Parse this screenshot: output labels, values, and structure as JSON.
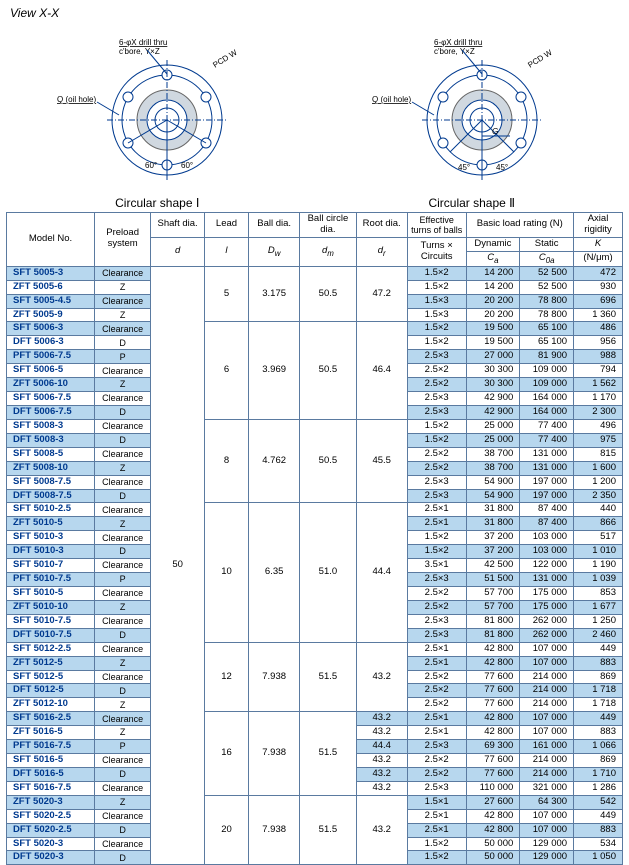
{
  "view_label": "View X-X",
  "diagram_labels": {
    "drill": "6-φX drill thru",
    "cbore": "c'bore, Y×Z",
    "pcd": "PCD W",
    "oil": "Q (oil hole)",
    "g": "G",
    "ang60": "60°",
    "ang45": "45°"
  },
  "shape1": "Circular shape Ⅰ",
  "shape2": "Circular shape Ⅱ",
  "headers": {
    "model": "Model No.",
    "preload": "Preload system",
    "shaft": "Shaft dia.",
    "shaft_sym": "d",
    "lead": "Lead",
    "lead_sym": "l",
    "ball": "Ball dia.",
    "ball_sym": "D",
    "ball_sub": "w",
    "bc": "Ball circle dia.",
    "bc_sym": "d",
    "bc_sub": "m",
    "rd": "Root dia.",
    "rd_sym": "d",
    "rd_sub": "r",
    "eff": "Effective turns of balls",
    "turns": "Turns × Circuits",
    "blr": "Basic load rating (N)",
    "dyn": "Dynamic",
    "ca": "C",
    "ca_sub": "a",
    "stat": "Static",
    "coa": "C",
    "coa_sub": "0a",
    "ar": "Axial rigidity",
    "k": "K",
    "kunit": "(N/μm)"
  },
  "groups": [
    {
      "shaft": "50",
      "lead": "5",
      "ball": "3.175",
      "bc": "50.5",
      "rd": "47.2",
      "rows": [
        {
          "m": "SFT 5005-3",
          "p": "Clearance",
          "t": "1.5×2",
          "ca": "14 200",
          "coa": "52 500",
          "k": "472"
        },
        {
          "m": "ZFT 5005-6",
          "p": "Z",
          "t": "1.5×2",
          "ca": "14 200",
          "coa": "52 500",
          "k": "930"
        },
        {
          "m": "SFT 5005-4.5",
          "p": "Clearance",
          "t": "1.5×3",
          "ca": "20 200",
          "coa": "78 800",
          "k": "696"
        },
        {
          "m": "ZFT 5005-9",
          "p": "Z",
          "t": "1.5×3",
          "ca": "20 200",
          "coa": "78 800",
          "k": "1 360"
        }
      ]
    },
    {
      "lead": "6",
      "ball": "3.969",
      "bc": "50.5",
      "rd": "46.4",
      "rows": [
        {
          "m": "SFT 5006-3",
          "p": "Clearance",
          "t": "1.5×2",
          "ca": "19 500",
          "coa": "65 100",
          "k": "486"
        },
        {
          "m": "DFT 5006-3",
          "p": "D",
          "t": "1.5×2",
          "ca": "19 500",
          "coa": "65 100",
          "k": "956"
        },
        {
          "m": "PFT 5006-7.5",
          "p": "P",
          "t": "2.5×3",
          "ca": "27 000",
          "coa": "81 900",
          "k": "988"
        },
        {
          "m": "SFT 5006-5",
          "p": "Clearance",
          "t": "2.5×2",
          "ca": "30 300",
          "coa": "109 000",
          "k": "794"
        },
        {
          "m": "ZFT 5006-10",
          "p": "Z",
          "t": "2.5×2",
          "ca": "30 300",
          "coa": "109 000",
          "k": "1 562"
        },
        {
          "m": "SFT 5006-7.5",
          "p": "Clearance",
          "t": "2.5×3",
          "ca": "42 900",
          "coa": "164 000",
          "k": "1 170"
        },
        {
          "m": "DFT 5006-7.5",
          "p": "D",
          "t": "2.5×3",
          "ca": "42 900",
          "coa": "164 000",
          "k": "2 300"
        }
      ]
    },
    {
      "lead": "8",
      "ball": "4.762",
      "bc": "50.5",
      "rd": "45.5",
      "rows": [
        {
          "m": "SFT 5008-3",
          "p": "Clearance",
          "t": "1.5×2",
          "ca": "25 000",
          "coa": "77 400",
          "k": "496"
        },
        {
          "m": "DFT 5008-3",
          "p": "D",
          "t": "1.5×2",
          "ca": "25 000",
          "coa": "77 400",
          "k": "975"
        },
        {
          "m": "SFT 5008-5",
          "p": "Clearance",
          "t": "2.5×2",
          "ca": "38 700",
          "coa": "131 000",
          "k": "815"
        },
        {
          "m": "ZFT 5008-10",
          "p": "Z",
          "t": "2.5×2",
          "ca": "38 700",
          "coa": "131 000",
          "k": "1 600"
        },
        {
          "m": "SFT 5008-7.5",
          "p": "Clearance",
          "t": "2.5×3",
          "ca": "54 900",
          "coa": "197 000",
          "k": "1 200"
        },
        {
          "m": "DFT 5008-7.5",
          "p": "D",
          "t": "2.5×3",
          "ca": "54 900",
          "coa": "197 000",
          "k": "2 350"
        }
      ]
    },
    {
      "lead": "10",
      "ball": "6.35",
      "bc": "51.0",
      "rd": "44.4",
      "rows": [
        {
          "m": "SFT 5010-2.5",
          "p": "Clearance",
          "t": "2.5×1",
          "ca": "31 800",
          "coa": "87 400",
          "k": "440"
        },
        {
          "m": "ZFT 5010-5",
          "p": "Z",
          "t": "2.5×1",
          "ca": "31 800",
          "coa": "87 400",
          "k": "866"
        },
        {
          "m": "SFT 5010-3",
          "p": "Clearance",
          "t": "1.5×2",
          "ca": "37 200",
          "coa": "103 000",
          "k": "517"
        },
        {
          "m": "DFT 5010-3",
          "p": "D",
          "t": "1.5×2",
          "ca": "37 200",
          "coa": "103 000",
          "k": "1 010"
        },
        {
          "m": "SFT 5010-7",
          "p": "Clearance",
          "t": "3.5×1",
          "ca": "42 500",
          "coa": "122 000",
          "k": "1 190"
        },
        {
          "m": "PFT 5010-7.5",
          "p": "P",
          "t": "2.5×3",
          "ca": "51 500",
          "coa": "131 000",
          "k": "1 039"
        },
        {
          "m": "SFT 5010-5",
          "p": "Clearance",
          "t": "2.5×2",
          "ca": "57 700",
          "coa": "175 000",
          "k": "853"
        },
        {
          "m": "ZFT 5010-10",
          "p": "Z",
          "t": "2.5×2",
          "ca": "57 700",
          "coa": "175 000",
          "k": "1 677",
          "star": true
        },
        {
          "m": "SFT 5010-7.5",
          "p": "Clearance",
          "t": "2.5×3",
          "ca": "81 800",
          "coa": "262 000",
          "k": "1 250"
        },
        {
          "m": "DFT 5010-7.5",
          "p": "D",
          "t": "2.5×3",
          "ca": "81 800",
          "coa": "262 000",
          "k": "2 460"
        }
      ]
    },
    {
      "lead": "12",
      "ball": "7.938",
      "bc": "51.5",
      "rd": "43.2",
      "rows": [
        {
          "m": "SFT 5012-2.5",
          "p": "Clearance",
          "t": "2.5×1",
          "ca": "42 800",
          "coa": "107 000",
          "k": "449"
        },
        {
          "m": "ZFT 5012-5",
          "p": "Z",
          "t": "2.5×1",
          "ca": "42 800",
          "coa": "107 000",
          "k": "883"
        },
        {
          "m": "SFT 5012-5",
          "p": "Clearance",
          "t": "2.5×2",
          "ca": "77 600",
          "coa": "214 000",
          "k": "869"
        },
        {
          "m": "DFT 5012-5",
          "p": "D",
          "t": "2.5×2",
          "ca": "77 600",
          "coa": "214 000",
          "k": "1 718"
        },
        {
          "m": "ZFT 5012-10",
          "p": "Z",
          "t": "2.5×2",
          "ca": "77 600",
          "coa": "214 000",
          "k": "1 718"
        }
      ]
    },
    {
      "lead": "16",
      "ball": "7.938",
      "bc": "51.5",
      "rd_per_row": true,
      "rows": [
        {
          "m": "SFT 5016-2.5",
          "p": "Clearance",
          "t": "2.5×1",
          "ca": "42 800",
          "coa": "107 000",
          "k": "449",
          "rd": "43.2"
        },
        {
          "m": "ZFT 5016-5",
          "p": "Z",
          "t": "2.5×1",
          "ca": "42 800",
          "coa": "107 000",
          "k": "883",
          "rd": "43.2"
        },
        {
          "m": "PFT 5016-7.5",
          "p": "P",
          "t": "2.5×3",
          "ca": "69 300",
          "coa": "161 000",
          "k": "1 066",
          "rd": "44.4"
        },
        {
          "m": "SFT 5016-5",
          "p": "Clearance",
          "t": "2.5×2",
          "ca": "77 600",
          "coa": "214 000",
          "k": "869",
          "rd": "43.2"
        },
        {
          "m": "DFT 5016-5",
          "p": "D",
          "t": "2.5×2",
          "ca": "77 600",
          "coa": "214 000",
          "k": "1 710",
          "rd": "43.2"
        },
        {
          "m": "SFT 5016-7.5",
          "p": "Clearance",
          "t": "2.5×3",
          "ca": "110 000",
          "coa": "321 000",
          "k": "1 286",
          "rd": "43.2"
        }
      ]
    },
    {
      "lead": "20",
      "ball": "7.938",
      "bc": "51.5",
      "rd": "43.2",
      "rows": [
        {
          "m": "ZFT 5020-3",
          "p": "Z",
          "t": "1.5×1",
          "ca": "27 600",
          "coa": "64 300",
          "k": "542"
        },
        {
          "m": "SFT 5020-2.5",
          "p": "Clearance",
          "t": "2.5×1",
          "ca": "42 800",
          "coa": "107 000",
          "k": "449"
        },
        {
          "m": "DFT 5020-2.5",
          "p": "D",
          "t": "2.5×1",
          "ca": "42 800",
          "coa": "107 000",
          "k": "883"
        },
        {
          "m": "SFT 5020-3",
          "p": "Clearance",
          "t": "1.5×2",
          "ca": "50 000",
          "coa": "129 000",
          "k": "534"
        },
        {
          "m": "DFT 5020-3",
          "p": "D",
          "t": "1.5×2",
          "ca": "50 000",
          "coa": "129 000",
          "k": "1 050"
        }
      ]
    }
  ]
}
